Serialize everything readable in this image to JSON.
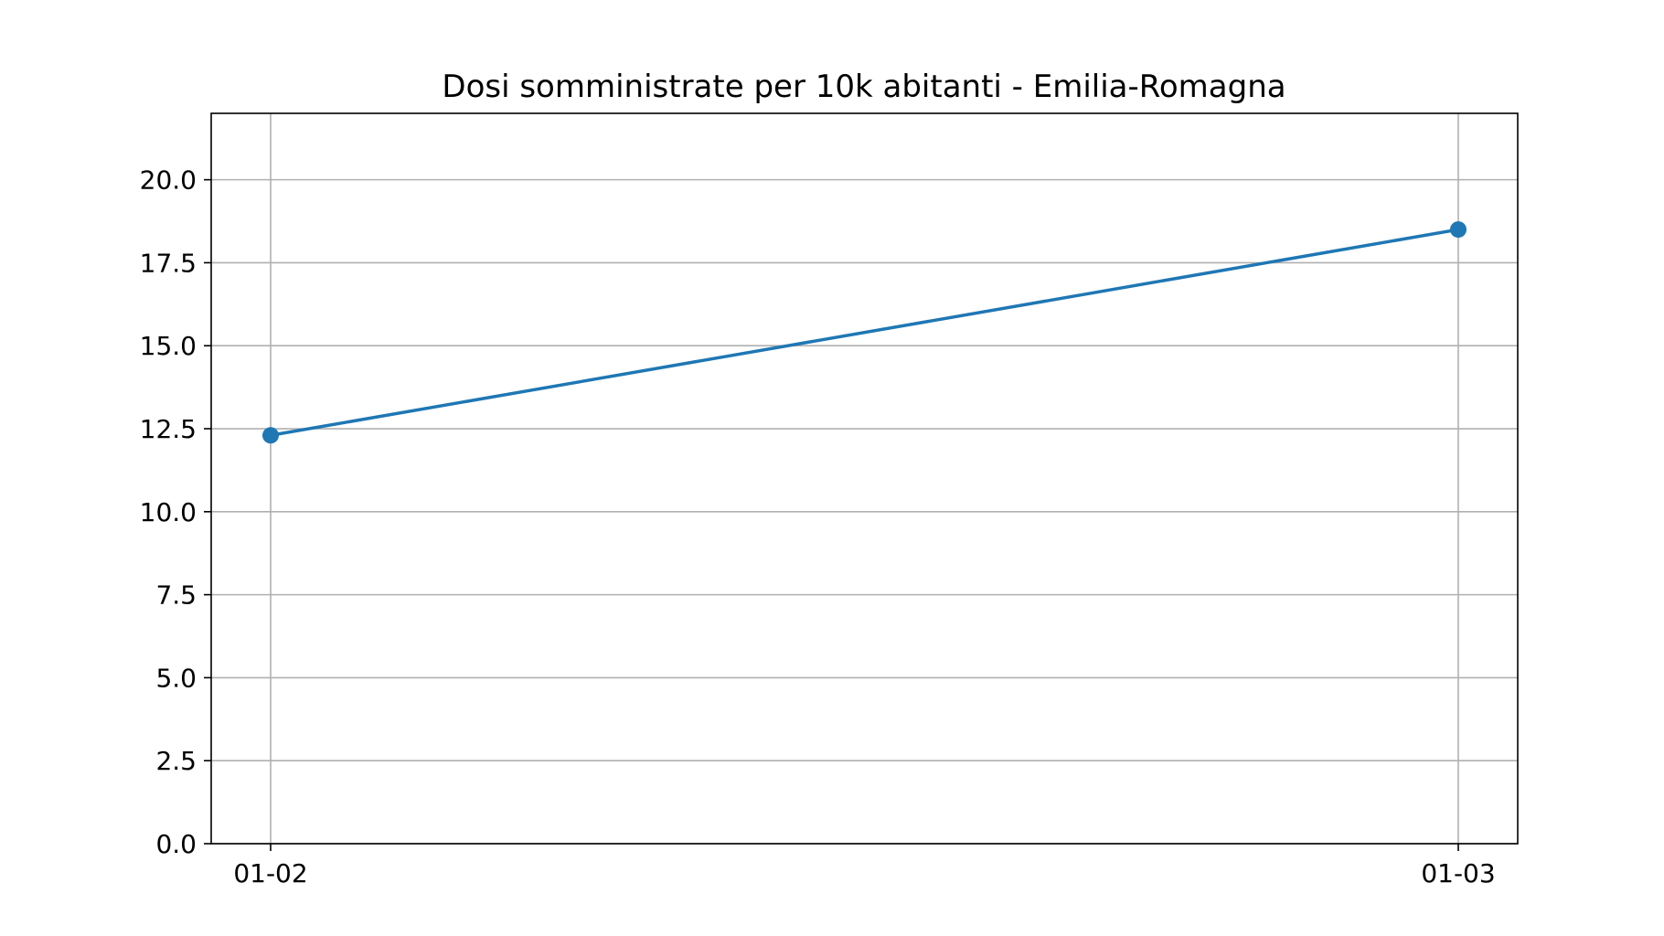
{
  "chart_data": {
    "type": "line",
    "title": "Dosi somministrate per 10k abitanti - Emilia-Romagna",
    "xlabel": "",
    "ylabel": "",
    "categories": [
      "01-02",
      "01-03"
    ],
    "series": [
      {
        "values": [
          12.3,
          18.5
        ],
        "color": "#1f77b4",
        "marker": "circle"
      }
    ],
    "ylim": [
      0,
      22
    ],
    "y_ticks": [
      0.0,
      2.5,
      5.0,
      7.5,
      10.0,
      12.5,
      15.0,
      17.5,
      20.0
    ],
    "y_tick_labels": [
      "0.0",
      "2.5",
      "5.0",
      "7.5",
      "10.0",
      "12.5",
      "15.0",
      "17.5",
      "20.0"
    ],
    "grid": true,
    "legend": "none"
  }
}
